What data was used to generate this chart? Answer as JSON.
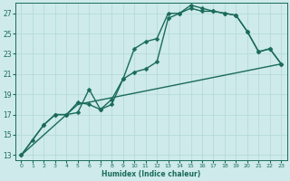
{
  "xlabel": "Humidex (Indice chaleur)",
  "xlim": [
    -0.5,
    23.5
  ],
  "ylim": [
    12.5,
    28
  ],
  "xticks": [
    0,
    1,
    2,
    3,
    4,
    5,
    6,
    7,
    8,
    9,
    10,
    11,
    12,
    13,
    14,
    15,
    16,
    17,
    18,
    19,
    20,
    21,
    22,
    23
  ],
  "yticks": [
    13,
    15,
    17,
    19,
    21,
    23,
    25,
    27
  ],
  "bg_color": "#ceeaea",
  "line_color": "#1a6b5a",
  "grid_color": "#b0d8d8",
  "line1_x": [
    0,
    1,
    2,
    3,
    4,
    5,
    6,
    7,
    8,
    9,
    10,
    11,
    12,
    13,
    14,
    15,
    16,
    17,
    18,
    19,
    20,
    21,
    22,
    23
  ],
  "line1_y": [
    13,
    14.5,
    16,
    17,
    17,
    17.2,
    19.5,
    17.5,
    18.5,
    20.5,
    21.2,
    21.5,
    22.2,
    26.5,
    27,
    27.8,
    27.5,
    27.2,
    27.0,
    26.8,
    25.2,
    23.2,
    23.5,
    22
  ],
  "line2_x": [
    0,
    2,
    3,
    4,
    5,
    6,
    7,
    8,
    9,
    10,
    11,
    12,
    13,
    14,
    15,
    16,
    17,
    18,
    19,
    20,
    21,
    22,
    23
  ],
  "line2_y": [
    13,
    16,
    17,
    17,
    18.2,
    18,
    17.5,
    18,
    20.5,
    23.5,
    24.2,
    24.5,
    27,
    27,
    27.5,
    27.2,
    27.2,
    27.0,
    26.8,
    25.2,
    23.2,
    23.5,
    22
  ],
  "line3_x": [
    0,
    5,
    23
  ],
  "line3_y": [
    13,
    18,
    22
  ],
  "marker_size": 2.5,
  "linewidth": 1.0
}
